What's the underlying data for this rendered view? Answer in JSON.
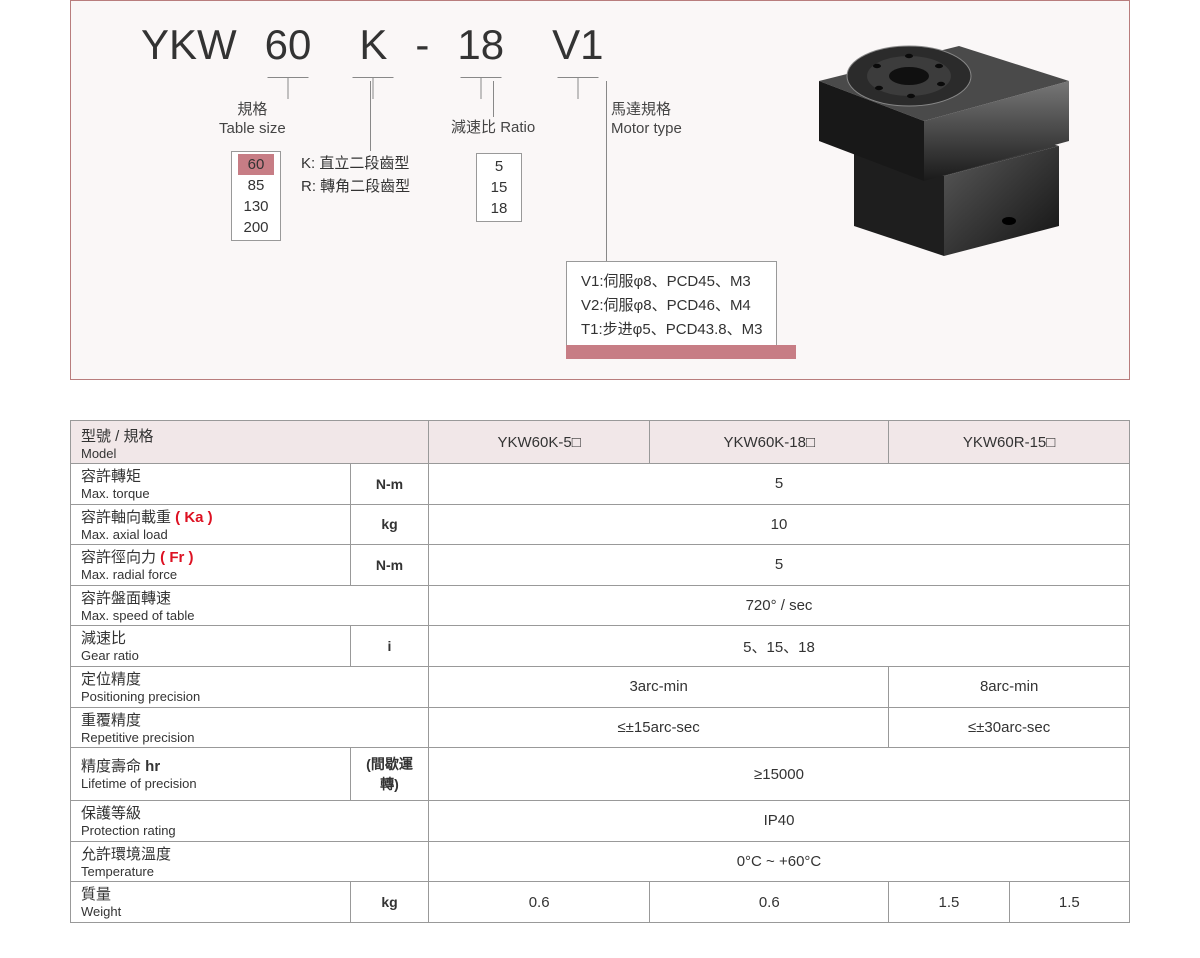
{
  "code": {
    "prefix": "YKW",
    "size": "60",
    "type": "K",
    "dash": "-",
    "ratio": "18",
    "motor": "V1"
  },
  "legends": {
    "size": {
      "cn": "規格",
      "en": "Table size"
    },
    "ratio": {
      "cn": "減速比",
      "en": "Ratio"
    },
    "motor": {
      "cn": "馬達規格",
      "en": "Motor type"
    }
  },
  "size_options": {
    "selected": "60",
    "others": [
      "85",
      "130",
      "200"
    ]
  },
  "type_desc": {
    "l1": "K: 直立二段齒型",
    "l2": "R: 轉角二段齒型"
  },
  "ratio_options": [
    "5",
    "15",
    "18"
  ],
  "motor_options": [
    "V1:伺服φ8、PCD45、M3",
    "V2:伺服φ8、PCD46、M4",
    "T1:步进φ5、PCD43.8、M3"
  ],
  "table": {
    "header_label": {
      "cn": "型號 / 規格",
      "en": "Model"
    },
    "models": [
      "YKW60K-5□",
      "YKW60K-18□",
      "YKW60R-15□"
    ],
    "rows": [
      {
        "cn": "容許轉矩",
        "en": "Max. torque",
        "unit": "N-m",
        "span": "full",
        "val": "5"
      },
      {
        "cn": "容許軸向載重 ",
        "ka": "( Ka )",
        "en": "Max. axial load",
        "unit": "kg",
        "span": "full",
        "val": "10"
      },
      {
        "cn": "容許徑向力 ",
        "fr": "( Fr )",
        "en": "Max. radial force",
        "unit": "N-m",
        "span": "full",
        "val": "5"
      },
      {
        "cn": "容許盤面轉速",
        "en": "Max. speed of table",
        "unit": "",
        "span": "full",
        "val": "720° / sec"
      },
      {
        "cn": "減速比",
        "en": "Gear ratio",
        "unit": "i",
        "span": "full",
        "val": "5、15、18"
      },
      {
        "cn": "定位精度",
        "en": "Positioning precision",
        "unit": "",
        "span": "split2",
        "val1": "3arc-min",
        "val2": "8arc-min"
      },
      {
        "cn": "重覆精度",
        "en": "Repetitive precision",
        "unit": "",
        "span": "split2",
        "val1": "≤±15arc-sec",
        "val2": "≤±30arc-sec"
      },
      {
        "cn": "精度壽命 ",
        "hr": "hr",
        "en": "Lifetime of precision",
        "unit": "(間歇運轉)",
        "span": "full",
        "val": "≥15000"
      },
      {
        "cn": "保護等級",
        "en": "Protection rating",
        "unit": "",
        "span": "full",
        "val": "IP40"
      },
      {
        "cn": "允許環境溫度",
        "en": "Temperature",
        "unit": "",
        "span": "full",
        "val": "0°C ~ +60°C"
      },
      {
        "cn": "質量",
        "en": "Weight",
        "unit": "kg",
        "span": "split4",
        "v1": "0.6",
        "v2": "0.6",
        "v3": "1.5",
        "v4": "1.5"
      }
    ]
  }
}
